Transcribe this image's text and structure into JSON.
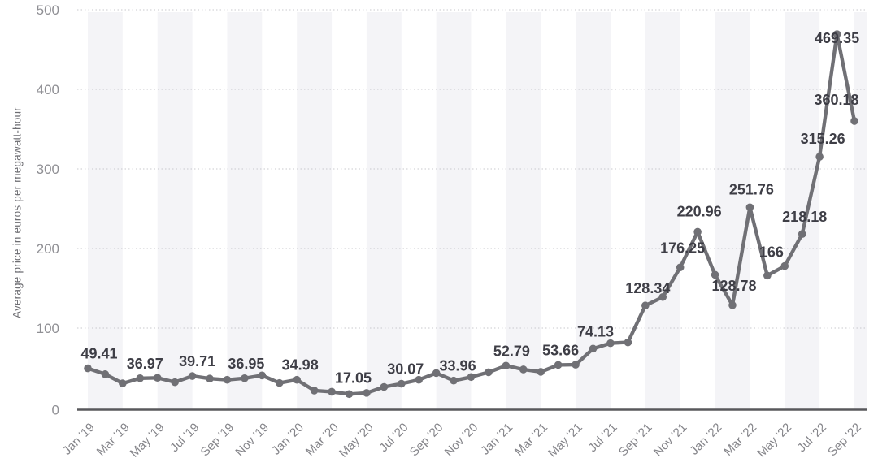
{
  "chart_data": {
    "type": "line",
    "title": "",
    "ylabel": "Average price in euros per megawatt-hour",
    "xlabel": "",
    "ylim": [
      0,
      500
    ],
    "y_ticks": [
      0,
      100,
      200,
      300,
      400,
      500
    ],
    "grid": "horizontal-dotted",
    "legend_position": "none",
    "x_tick_every": 2,
    "x": [
      "Jan '19",
      "Feb '19",
      "Mar '19",
      "Apr '19",
      "May '19",
      "Jun '19",
      "Jul '19",
      "Aug '19",
      "Sep '19",
      "Oct '19",
      "Nov '19",
      "Dec '19",
      "Jan '20",
      "Feb '20",
      "Mar '20",
      "Apr '20",
      "May '20",
      "Jun '20",
      "Jul '20",
      "Aug '20",
      "Sep '20",
      "Oct '20",
      "Nov '20",
      "Dec '20",
      "Jan '21",
      "Feb '21",
      "Mar '21",
      "Apr '21",
      "May '21",
      "Jun '21",
      "Jul '21",
      "Aug '21",
      "Sep '21",
      "Oct '21",
      "Nov '21",
      "Dec '21",
      "Jan '22",
      "Feb '22",
      "Mar '22",
      "Apr '22",
      "May '22",
      "Jun '22",
      "Jul '22",
      "Aug '22",
      "Sep '22"
    ],
    "values": [
      49.41,
      42,
      30.5,
      36.97,
      37.5,
      32,
      39.71,
      36.5,
      35,
      36.95,
      40.5,
      31,
      34.98,
      21.5,
      20,
      17.05,
      18.5,
      26,
      30.07,
      35,
      43.5,
      33.96,
      38.5,
      44.5,
      52.79,
      48,
      45,
      53.66,
      54,
      74.13,
      81,
      82,
      128.34,
      139,
      176.25,
      220.96,
      167,
      128.78,
      251.76,
      166,
      178,
      218.18,
      315.26,
      469.35,
      360.18
    ],
    "point_labels": [
      {
        "i": 0,
        "text": "49.41"
      },
      {
        "i": 3,
        "text": "36.97"
      },
      {
        "i": 6,
        "text": "39.71"
      },
      {
        "i": 9,
        "text": "36.95"
      },
      {
        "i": 12,
        "text": "34.98"
      },
      {
        "i": 15,
        "text": "17.05"
      },
      {
        "i": 18,
        "text": "30.07"
      },
      {
        "i": 21,
        "text": "33.96"
      },
      {
        "i": 24,
        "text": "52.79"
      },
      {
        "i": 27,
        "text": "53.66"
      },
      {
        "i": 29,
        "text": "74.13"
      },
      {
        "i": 32,
        "text": "128.34"
      },
      {
        "i": 34,
        "text": "176.25"
      },
      {
        "i": 35,
        "text": "220.96"
      },
      {
        "i": 37,
        "text": "128.78"
      },
      {
        "i": 38,
        "text": "251.76"
      },
      {
        "i": 39,
        "text": "166"
      },
      {
        "i": 41,
        "text": "218.18"
      },
      {
        "i": 42,
        "text": "315.26"
      },
      {
        "i": 43,
        "text": "469.35"
      },
      {
        "i": 44,
        "text": "360.18"
      }
    ],
    "colors": {
      "line": "#707075",
      "marker": "#707075",
      "point_label_text": "#3e3e46",
      "axis_line": "#58585c",
      "tick_text": "#8f8f94",
      "x_tick_text": "#85858a",
      "grid_dotted": "#c9c9ce",
      "band": "#f4f4f7",
      "background": "#ffffff"
    }
  }
}
